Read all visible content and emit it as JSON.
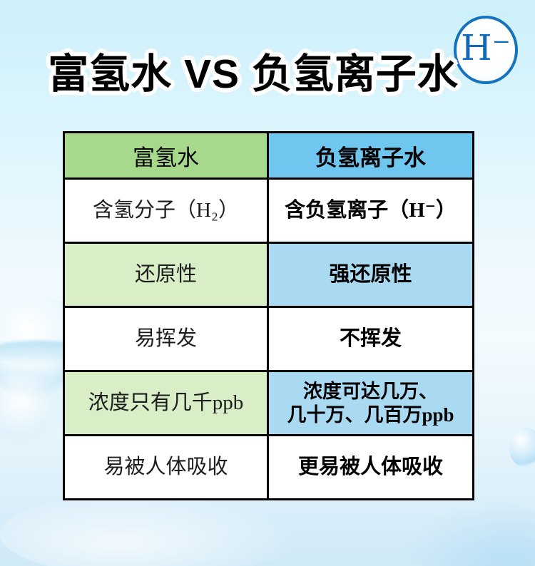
{
  "title": {
    "text": "富氢水 VS 负氢离子水"
  },
  "badge": {
    "symbol": "H⁻"
  },
  "colors": {
    "background_top": "#cdf0fb",
    "background_bottom": "#cfe9f7",
    "title_text": "#000000",
    "title_outline": "#ffffff",
    "badge_ring": "#1472bf",
    "badge_text": "#1268b8",
    "header_green": "#a6d98b",
    "header_blue": "#6fc7f0",
    "row_tint_green": "#d8eec7",
    "row_tint_blue": "#a9daf2",
    "grid_line": "#000000"
  },
  "table": {
    "headers": [
      {
        "label": "富氢水"
      },
      {
        "label": "负氢离子水"
      }
    ],
    "rows": [
      {
        "left": "含氢分子（H₂）",
        "right": "含负氢离子（H⁻）"
      },
      {
        "left": "还原性",
        "right": "强还原性"
      },
      {
        "left": "易挥发",
        "right": "不挥发"
      },
      {
        "left": "浓度只有几千ppb",
        "right": "浓度可达几万、\n几十万、几百万ppb"
      },
      {
        "left": "易被人体吸收",
        "right": "更易被人体吸收"
      }
    ]
  },
  "chart_data": {
    "type": "table",
    "title": "富氢水 VS 负氢离子水",
    "columns": [
      "富氢水",
      "负氢离子水"
    ],
    "rows": [
      [
        "含氢分子（H₂）",
        "含负氢离子（H⁻）"
      ],
      [
        "还原性",
        "强还原性"
      ],
      [
        "易挥发",
        "不挥发"
      ],
      [
        "浓度只有几千ppb",
        "浓度可达几万、几十万、几百万ppb"
      ],
      [
        "易被人体吸收",
        "更易被人体吸收"
      ]
    ]
  }
}
